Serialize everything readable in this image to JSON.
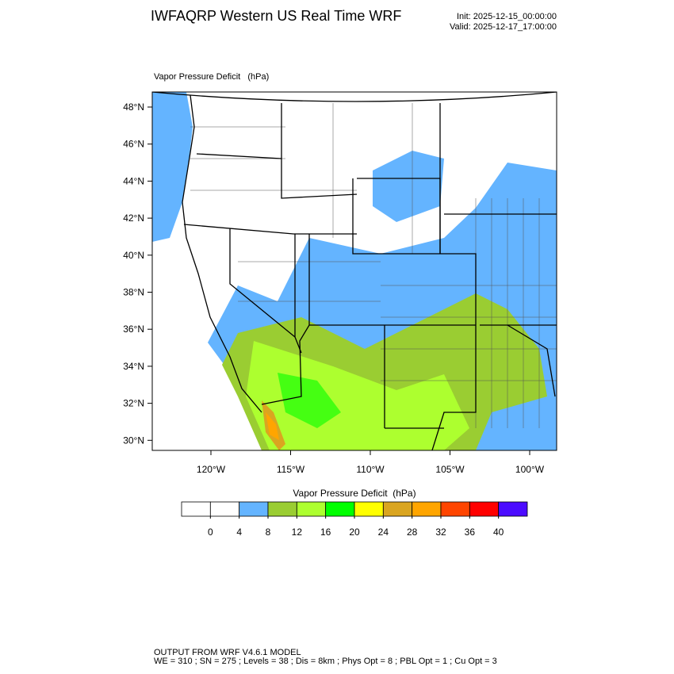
{
  "header": {
    "title": "IWFAQRP Western US Real Time WRF",
    "init": "Init: 2025-12-15_00:00:00",
    "valid": "Valid: 2025-12-17_17:00:00"
  },
  "map": {
    "title": "Vapor Pressure Deficit   (hPa)",
    "lat_labels": [
      "48°N",
      "46°N",
      "44°N",
      "42°N",
      "40°N",
      "38°N",
      "36°N",
      "34°N",
      "32°N",
      "30°N"
    ],
    "lon_labels": [
      "120°W",
      "115°W",
      "110°W",
      "105°W",
      "100°W"
    ]
  },
  "colorbar": {
    "title": "Vapor Pressure Deficit  (hPa)",
    "ticks": [
      0,
      4,
      8,
      12,
      16,
      20,
      24,
      28,
      32,
      36,
      40
    ],
    "colors": [
      "#ffffff",
      "#ffffff",
      "#64b4ff",
      "#9acd32",
      "#adff2f",
      "#00ff00",
      "#ffff00",
      "#daa520",
      "#ffa500",
      "#ff4500",
      "#ff0000",
      "#4b0bff"
    ]
  },
  "footer": {
    "lines": [
      "OUTPUT FROM WRF V4.6.1 MODEL",
      "WE = 310 ; SN = 275 ; Levels = 38 ; Dis = 8km ; Phys Opt = 8 ; PBL Opt = 1 ; Cu Opt = 3"
    ]
  }
}
